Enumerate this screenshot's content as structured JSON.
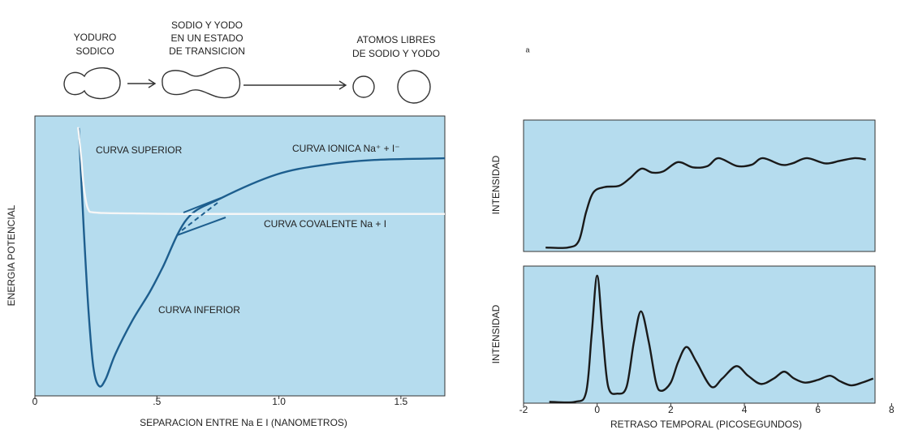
{
  "diagram": {
    "labels": [
      [
        "YODURO",
        "SODICO"
      ],
      [
        "SODIO Y YODO",
        "EN UN ESTADO",
        "DE TRANSICION"
      ],
      [
        "ATOMOS LIBRES",
        "DE SODIO Y YODO"
      ]
    ],
    "marker": "a"
  },
  "chart_data": [
    {
      "type": "line",
      "background": "#b5dcee",
      "xlabel": "SEPARACION ENTRE Na E I (NANOMETROS)",
      "ylabel": "ENERGIA POTENCIAL",
      "xlim": [
        0,
        1.68
      ],
      "ylim": [
        0,
        1
      ],
      "xticks": [
        0,
        {
          "value": 0.5,
          "label": ".5"
        },
        {
          "value": 1,
          "label": "1.0"
        },
        {
          "value": 1.5,
          "label": "1.5"
        }
      ],
      "annotations": [
        "CURVA SUPERIOR",
        "CURVA IONICA Na⁺ + I⁻",
        "CURVA COVALENTE Na + I",
        "CURVA INFERIOR"
      ],
      "series": [
        {
          "color": "#1d5e8e",
          "x": [
            0.18,
            0.2,
            0.22,
            0.24,
            0.263,
            0.29,
            0.33,
            0.4,
            0.47,
            0.523,
            0.623,
            0.757,
            0.99,
            1.19,
            1.39,
            1.68
          ],
          "values": [
            0.957,
            0.6,
            0.3,
            0.1,
            0.035,
            0.06,
            0.15,
            0.27,
            0.37,
            0.458,
            0.632,
            0.704,
            0.791,
            0.826,
            0.843,
            0.849
          ]
        },
        {
          "color": "#f6f6f6",
          "x": [
            0.177,
            0.19,
            0.2,
            0.217,
            0.25,
            0.4,
            0.6,
            1.0,
            1.68
          ],
          "values": [
            0.96,
            0.85,
            0.75,
            0.67,
            0.655,
            0.652,
            0.65,
            0.65,
            0.65
          ]
        }
      ]
    },
    {
      "type": "line",
      "background": "#b5dcee",
      "ylabel": "INTENSIDAD",
      "xlim": [
        -2,
        7.55
      ],
      "ylim": [
        0,
        1
      ],
      "series": [
        {
          "color": "#1a1a1a",
          "x": [
            -1.4,
            -0.8,
            -0.5,
            -0.3,
            -0.1,
            0.2,
            0.6,
            0.9,
            1.2,
            1.5,
            1.8,
            2.2,
            2.6,
            3.0,
            3.3,
            3.8,
            4.2,
            4.5,
            5.0,
            5.3,
            5.7,
            6.2,
            6.6,
            7.0,
            7.3
          ],
          "values": [
            0.03,
            0.03,
            0.08,
            0.3,
            0.45,
            0.49,
            0.5,
            0.56,
            0.63,
            0.6,
            0.61,
            0.68,
            0.64,
            0.65,
            0.71,
            0.65,
            0.66,
            0.71,
            0.66,
            0.67,
            0.71,
            0.67,
            0.69,
            0.71,
            0.7
          ]
        }
      ]
    },
    {
      "type": "line",
      "background": "#b5dcee",
      "ylabel": "INTENSIDAD",
      "xlabel": "RETRASO TEMPORAL (PICOSEGUNDOS)",
      "xlim": [
        -2,
        7.55
      ],
      "ylim": [
        0,
        1
      ],
      "xticks": [
        -2,
        0,
        2,
        4,
        6,
        8
      ],
      "series": [
        {
          "color": "#1a1a1a",
          "x": [
            -1.3,
            -0.6,
            -0.3,
            -0.15,
            0,
            0.15,
            0.3,
            0.55,
            0.8,
            1.0,
            1.19,
            1.4,
            1.6,
            1.75,
            2.0,
            2.2,
            2.43,
            2.7,
            3.1,
            3.4,
            3.78,
            4.1,
            4.45,
            4.8,
            5.08,
            5.35,
            5.65,
            6.0,
            6.33,
            6.6,
            6.9,
            7.2,
            7.5
          ],
          "values": [
            0.01,
            0.01,
            0.08,
            0.5,
            0.93,
            0.5,
            0.12,
            0.07,
            0.12,
            0.45,
            0.67,
            0.45,
            0.15,
            0.09,
            0.15,
            0.3,
            0.41,
            0.3,
            0.12,
            0.18,
            0.27,
            0.2,
            0.14,
            0.18,
            0.23,
            0.18,
            0.15,
            0.17,
            0.2,
            0.16,
            0.13,
            0.15,
            0.18
          ]
        }
      ]
    }
  ]
}
